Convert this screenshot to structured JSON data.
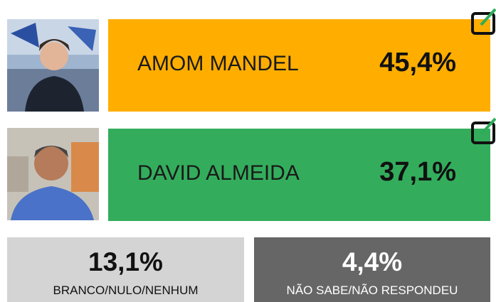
{
  "candidates": [
    {
      "name": "AMOM MANDEL",
      "value": "45,4%"
    },
    {
      "name": "DAVID ALMEIDA",
      "value": "37,1%"
    }
  ],
  "others": [
    {
      "label": "BRANCO/NULO/NENHUM",
      "value": "13,1%"
    },
    {
      "label": "NÃO SABE/NÃO RESPONDEU",
      "value": "4,4%"
    }
  ]
}
